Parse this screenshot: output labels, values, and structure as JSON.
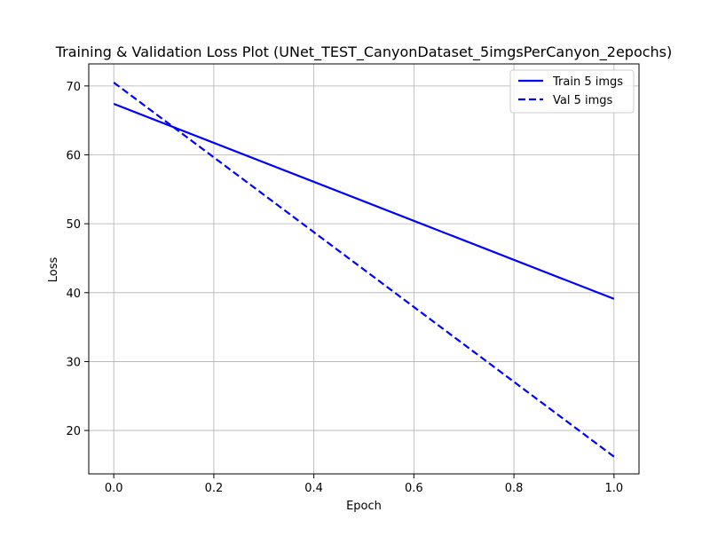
{
  "chart_data": {
    "type": "line",
    "title": "Training & Validation Loss Plot (UNet_TEST_CanyonDataset_5imgsPerCanyon_2epochs)",
    "xlabel": "Epoch",
    "ylabel": "Loss",
    "xlim": [
      -0.05,
      1.05
    ],
    "ylim": [
      13.7,
      73.2
    ],
    "xticks": [
      0.0,
      0.2,
      0.4,
      0.6,
      0.8,
      1.0
    ],
    "xtick_labels": [
      "0.0",
      "0.2",
      "0.4",
      "0.6",
      "0.8",
      "1.0"
    ],
    "yticks": [
      20,
      30,
      40,
      50,
      60,
      70
    ],
    "ytick_labels": [
      "20",
      "30",
      "40",
      "50",
      "60",
      "70"
    ],
    "grid": true,
    "legend_position": "top-right",
    "series": [
      {
        "name": "Train 5 imgs",
        "x": [
          0.0,
          1.0
        ],
        "y": [
          67.4,
          39.1
        ],
        "color": "#0000ff",
        "linestyle": "solid"
      },
      {
        "name": "Val 5 imgs",
        "x": [
          0.0,
          1.0
        ],
        "y": [
          70.5,
          16.2
        ],
        "color": "#0000ff",
        "linestyle": "dashed"
      }
    ]
  }
}
